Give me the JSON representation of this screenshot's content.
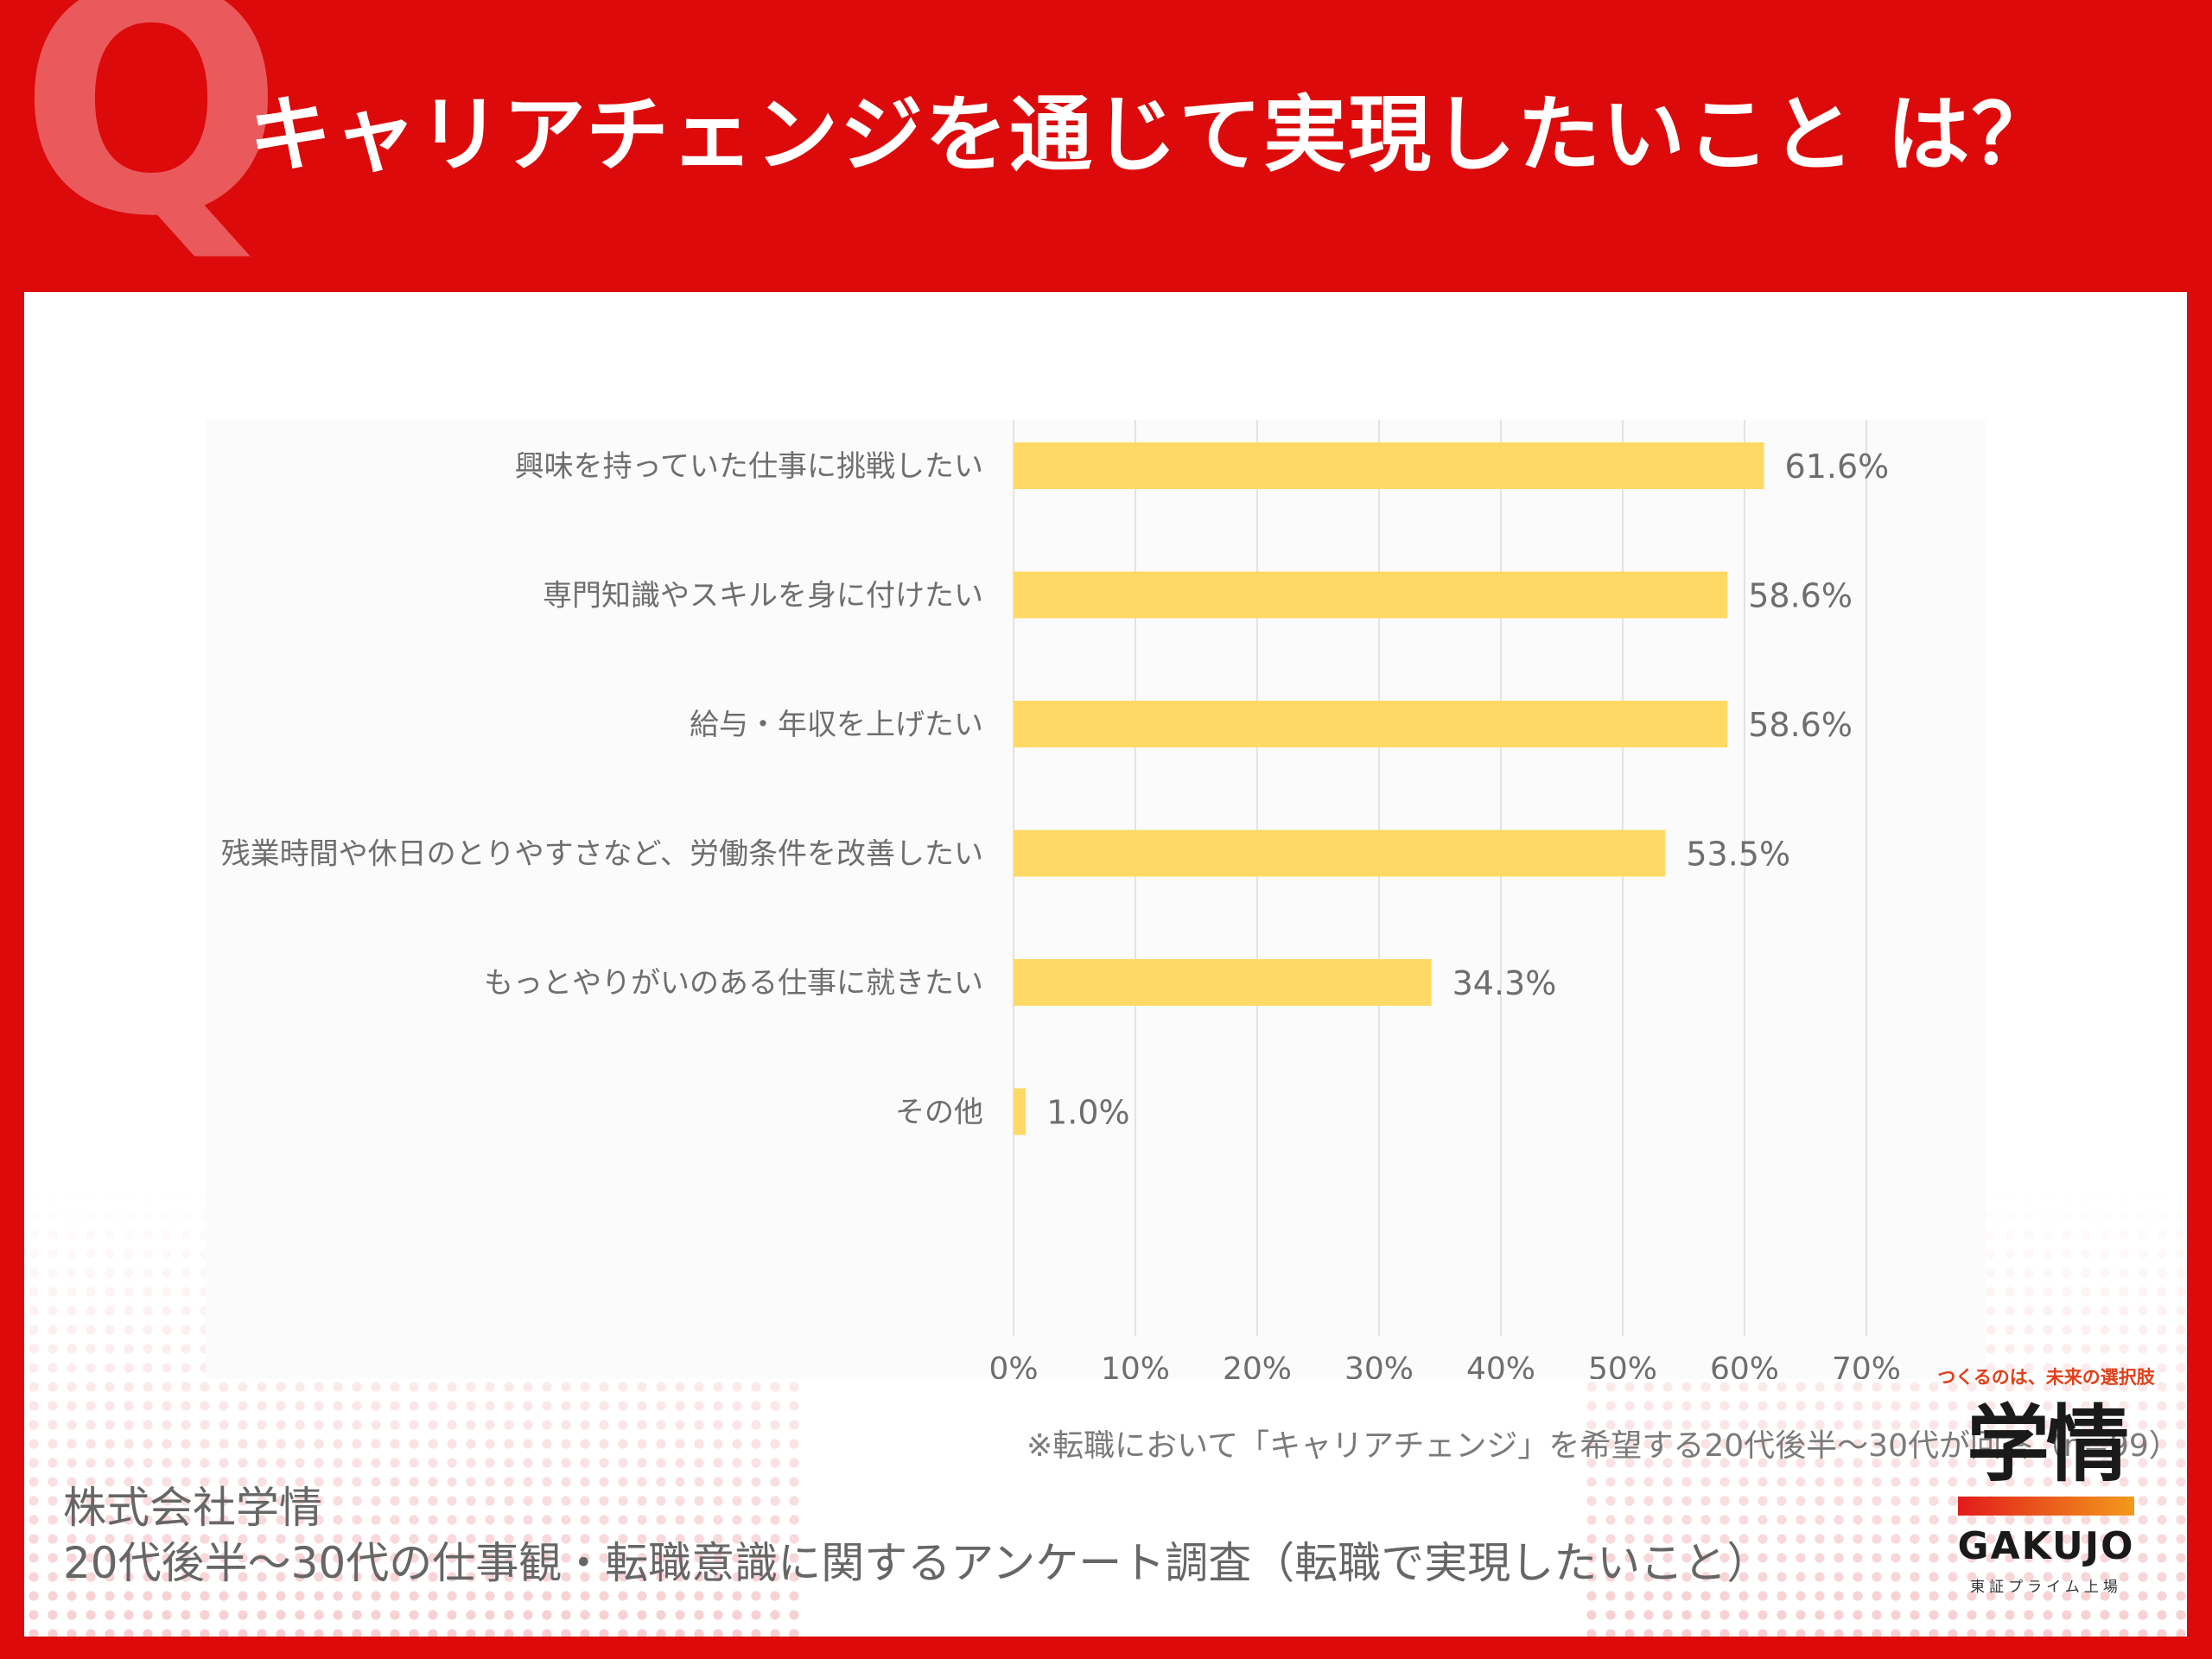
{
  "header": {
    "q_mark": "Q",
    "title": "キャリアチェンジを通じて実現したいこと は？"
  },
  "chart_data": {
    "type": "bar",
    "orientation": "horizontal",
    "categories": [
      "興味を持っていた仕事に挑戦したい",
      "専門知識やスキルを身に付けたい",
      "給与・年収を上げたい",
      "残業時間や休日のとりやすさなど、労働条件を改善したい",
      "もっとやりがいのある仕事に就きたい",
      "その他"
    ],
    "values": [
      61.6,
      58.6,
      58.6,
      53.5,
      34.3,
      1.0
    ],
    "value_labels": [
      "61.6%",
      "58.6%",
      "58.6%",
      "53.5%",
      "34.3%",
      "1.0%"
    ],
    "x_ticks": [
      "0%",
      "10%",
      "20%",
      "30%",
      "40%",
      "50%",
      "60%",
      "70%"
    ],
    "xlim": [
      0,
      70
    ],
    "grid": true,
    "bar_color": "#ffd966",
    "note": "※転職において「キャリアチェンジ」を希望する20代後半～30代が回答（n=99）"
  },
  "source": {
    "company": "株式会社学情",
    "survey": "20代後半～30代の仕事観・転職意識に関するアンケート調査（転職で実現したいこと）"
  },
  "logo": {
    "tagline": "つくるのは、未来の選択肢",
    "mark": "学情",
    "name": "GAKUJO",
    "sub": "東証プライム上場"
  },
  "colors": {
    "background": "#dc0a0a",
    "q_mark": "#ea5a5c",
    "panel": "#ffffff",
    "accent": "#e0401a"
  }
}
